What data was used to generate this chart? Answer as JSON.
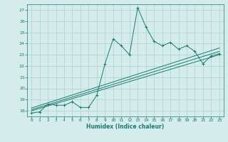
{
  "xlabel": "Humidex (Indice chaleur)",
  "x_values": [
    0,
    1,
    2,
    3,
    4,
    5,
    6,
    7,
    8,
    9,
    10,
    11,
    12,
    13,
    14,
    15,
    16,
    17,
    18,
    19,
    20,
    21,
    22,
    23
  ],
  "y_main": [
    17.8,
    17.9,
    18.6,
    18.5,
    18.5,
    18.8,
    18.3,
    18.3,
    19.4,
    22.2,
    24.4,
    23.8,
    23.0,
    27.2,
    25.5,
    24.2,
    23.8,
    24.1,
    23.5,
    23.8,
    23.3,
    22.2,
    22.9,
    23.1
  ],
  "regression_lines": [
    {
      "x": [
        0,
        23
      ],
      "y": [
        18.0,
        23.0
      ]
    },
    {
      "x": [
        0,
        23
      ],
      "y": [
        18.1,
        23.3
      ]
    },
    {
      "x": [
        0,
        23
      ],
      "y": [
        18.25,
        23.6
      ]
    }
  ],
  "ylim": [
    17.5,
    27.5
  ],
  "xlim": [
    -0.5,
    23.5
  ],
  "yticks": [
    18,
    19,
    20,
    21,
    22,
    23,
    24,
    25,
    26,
    27
  ],
  "xticks": [
    0,
    1,
    2,
    3,
    4,
    5,
    6,
    7,
    8,
    9,
    10,
    11,
    12,
    13,
    14,
    15,
    16,
    17,
    18,
    19,
    20,
    21,
    22,
    23
  ],
  "line_color": "#1a7a6e",
  "bg_color": "#d4ecec",
  "grid_color": "#aed0d0",
  "text_color": "#1a7a6e"
}
